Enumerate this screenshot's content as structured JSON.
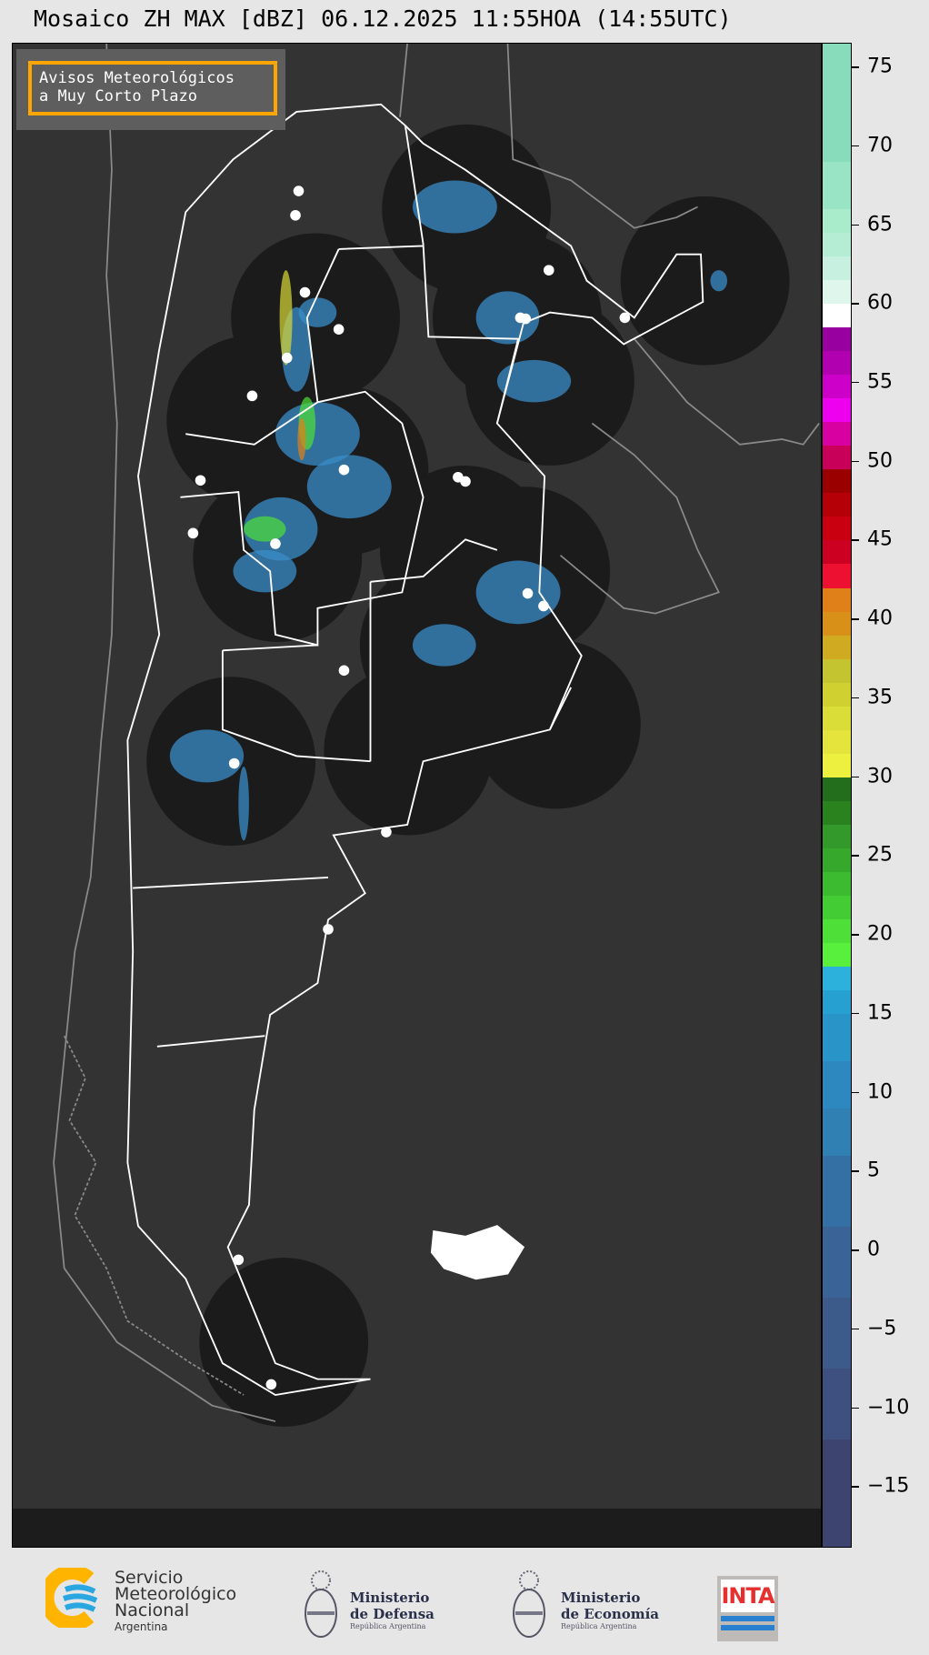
{
  "title": "Mosaico ZH MAX [dBZ] 06.12.2025 11:55HOA (14:55UTC)",
  "legend_box": {
    "line1": "Avisos Meteorológicos",
    "line2": "a Muy Corto Plazo",
    "border_color": "#ffa500"
  },
  "colorbar": {
    "unit": "dBZ",
    "range": [
      -18.9,
      76.5
    ],
    "ticks": [
      75,
      70,
      65,
      60,
      55,
      50,
      45,
      40,
      35,
      30,
      25,
      20,
      15,
      10,
      5,
      0,
      -5,
      -10,
      -15
    ],
    "segments": [
      [
        69,
        76.5,
        "#88dcbc"
      ],
      [
        66,
        69,
        "#98e4c4"
      ],
      [
        64.5,
        66,
        "#a8eccc"
      ],
      [
        63,
        64.5,
        "#b4ecd4"
      ],
      [
        61.5,
        63,
        "#c8f0e0"
      ],
      [
        60,
        61.5,
        "#dff6ec"
      ],
      [
        58.5,
        60,
        "#ffffff"
      ],
      [
        57,
        58.5,
        "#9900a0"
      ],
      [
        55.5,
        57,
        "#b000b0"
      ],
      [
        54,
        55.5,
        "#cc00c8"
      ],
      [
        52.5,
        54,
        "#ee00ee"
      ],
      [
        51,
        52.5,
        "#d800a0"
      ],
      [
        49.5,
        51,
        "#c8005a"
      ],
      [
        48,
        49.5,
        "#9a0000"
      ],
      [
        46.5,
        48,
        "#b50008"
      ],
      [
        45,
        46.5,
        "#c80010"
      ],
      [
        43.5,
        45,
        "#cc0020"
      ],
      [
        42,
        43.5,
        "#ee1030"
      ],
      [
        40.5,
        42,
        "#e08018"
      ],
      [
        39,
        40.5,
        "#d89018"
      ],
      [
        37.5,
        39,
        "#d0aa20"
      ],
      [
        36,
        37.5,
        "#c4c430"
      ],
      [
        34.5,
        36,
        "#d0d030"
      ],
      [
        33,
        34.5,
        "#dadc38"
      ],
      [
        31.5,
        33,
        "#e4e43c"
      ],
      [
        30,
        31.5,
        "#eef040"
      ],
      [
        28.5,
        30,
        "#236e1c"
      ],
      [
        27,
        28.5,
        "#2a821e"
      ],
      [
        25.5,
        27,
        "#32992a"
      ],
      [
        24,
        25.5,
        "#36a82c"
      ],
      [
        22.5,
        24,
        "#3cba30"
      ],
      [
        21,
        22.5,
        "#44cc34"
      ],
      [
        19.5,
        21,
        "#4ee038"
      ],
      [
        18,
        19.5,
        "#58f03c"
      ],
      [
        16.5,
        18,
        "#2cb0dc"
      ],
      [
        15,
        16.5,
        "#26a0d0"
      ],
      [
        12,
        15,
        "#2894c8"
      ],
      [
        9,
        12,
        "#2e88c0"
      ],
      [
        6,
        9,
        "#3080b4"
      ],
      [
        1.5,
        6,
        "#3470a4"
      ],
      [
        -3,
        1.5,
        "#3a6498"
      ],
      [
        -7.5,
        -3,
        "#3c5a8a"
      ],
      [
        -12,
        -7.5,
        "#3e5080"
      ],
      [
        -18.9,
        -12,
        "#3e4470"
      ]
    ]
  },
  "map": {
    "background": "#333333",
    "radar_coverage_color": "#1b1b1b",
    "echo_color": "#3a8cc8",
    "boundary_color": "#ffffff",
    "neighbor_boundary_color": "#8a8a8a"
  },
  "footer": {
    "smn": {
      "line1": "Servicio",
      "line2": "Meteorológico",
      "line3": "Nacional",
      "line4": "Argentina"
    },
    "defensa": {
      "line1": "Ministerio",
      "line2": "de Defensa",
      "line3": "República Argentina"
    },
    "economia": {
      "line1": "Ministerio",
      "line2": "de Economía",
      "line3": "República Argentina"
    },
    "inta": {
      "label": "INTA"
    }
  }
}
